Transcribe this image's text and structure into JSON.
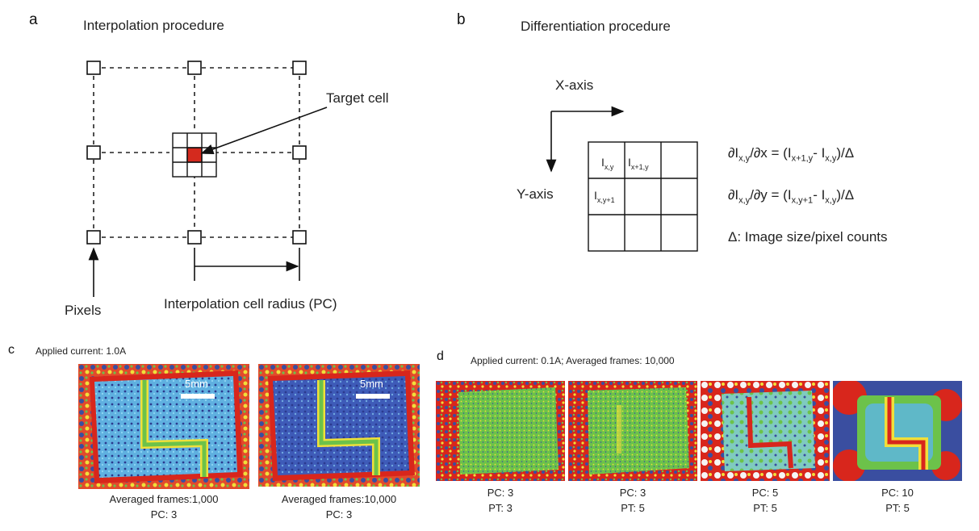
{
  "panel_a": {
    "letter": "a",
    "title": "Interpolation procedure",
    "target_label": "Target cell",
    "pixels_label": "Pixels",
    "radius_label": "Interpolation cell radius (PC)"
  },
  "panel_b": {
    "letter": "b",
    "title": "Differentiation procedure",
    "x_axis": "X-axis",
    "y_axis": "Y-axis",
    "cell_I": "I",
    "cell_xy": "x,y",
    "cell_x1y": "x+1,y",
    "cell_xy1": "x,y+1",
    "f1_a": "∂I",
    "f1_a_sub": "x,y",
    "f1_b": "/∂x = (I",
    "f1_b_sub": "x+1,y",
    "f1_c": "- I",
    "f1_c_sub": "x,y",
    "f1_d": ")/Δ",
    "f2_a": "∂I",
    "f2_a_sub": "x,y",
    "f2_b": "/∂y = (I",
    "f2_b_sub": "x,y+1",
    "f2_c": "- I",
    "f2_c_sub": "x,y",
    "f2_d": ")/Δ",
    "f3": "Δ: Image size/pixel counts"
  },
  "panel_c": {
    "letter": "c",
    "title": "Applied current: 1.0A",
    "scale": "5mm",
    "images": [
      {
        "line1": "Averaged frames:1,000",
        "line2": "PC: 3"
      },
      {
        "line1": "Averaged frames:10,000",
        "line2": "PC: 3"
      }
    ]
  },
  "panel_d": {
    "letter": "d",
    "title": "Applied current: 0.1A; Averaged frames: 10,000",
    "images": [
      {
        "line1": "PC: 3",
        "line2": "PT: 3"
      },
      {
        "line1": "PC: 3",
        "line2": "PT: 5"
      },
      {
        "line1": "PC: 5",
        "line2": "PT: 5"
      },
      {
        "line1": "PC: 10",
        "line2": "PT: 5"
      }
    ]
  },
  "colors": {
    "target_red": "#d42a1e",
    "map_dark_blue": "#2b3a8f",
    "map_light_blue": "#5fb8e6",
    "map_green": "#6cc24a",
    "map_yellow": "#f0e03a",
    "map_red": "#d8261c"
  }
}
